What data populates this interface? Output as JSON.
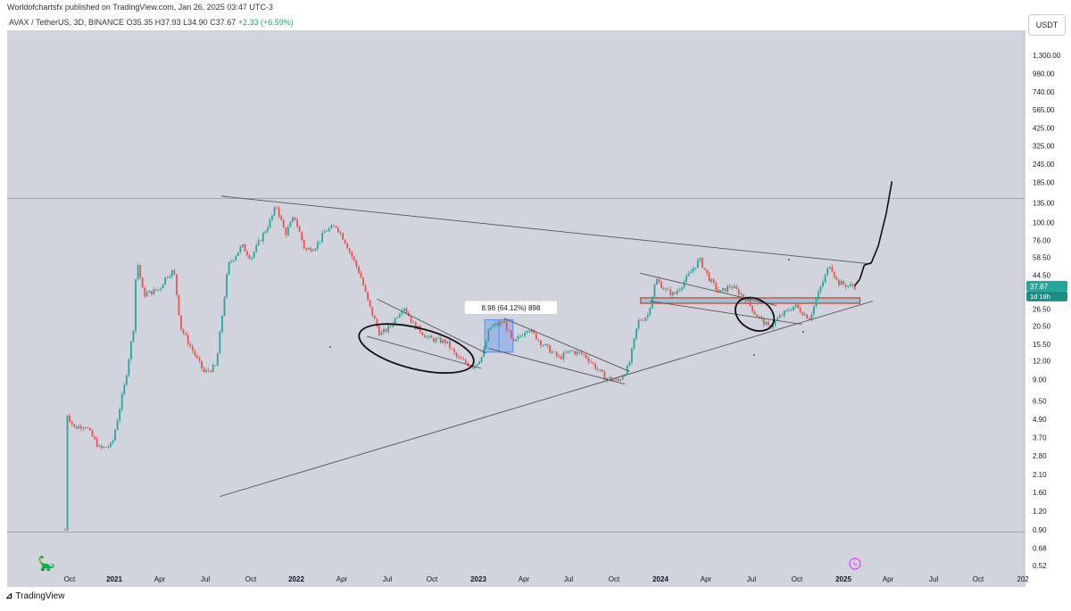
{
  "header": {
    "publisher_line": "Worldofchartsfx published on TradingView.com, Jan 26, 2025 03:47 UTC-3",
    "symbol_line": "AVAX / TetherUS, 3D, BINANCE",
    "ohlc": {
      "open": "O35.35",
      "high": "H37.93",
      "low": "L34.90",
      "close": "C37.67",
      "change": "+2.33 (+6.59%)"
    }
  },
  "currency_label": "USDT",
  "footer": {
    "brand": "TradingView"
  },
  "colors": {
    "background": "#d1d4dc",
    "up": "#26a69a",
    "down": "#ef5350",
    "line": "#555555",
    "badge": "#26a69a"
  },
  "chart_data": {
    "type": "candlestick",
    "scale": "log",
    "y_ticks": [
      "1,300.00",
      "980.00",
      "740.00",
      "565.00",
      "425.00",
      "325.00",
      "245.00",
      "185.00",
      "135.00",
      "100.00",
      "76.00",
      "58.50",
      "44.50",
      "34.50",
      "26.50",
      "20.50",
      "15.50",
      "12.00",
      "9.00",
      "6.50",
      "4.90",
      "3.70",
      "2.80",
      "2.10",
      "1.60",
      "1.20",
      "0.90",
      "0.68",
      "0.52"
    ],
    "x_ticks": [
      "Oct",
      "2021",
      "Apr",
      "Jul",
      "Oct",
      "2022",
      "Apr",
      "Jul",
      "Oct",
      "2023",
      "Apr",
      "Jul",
      "Oct",
      "2024",
      "Apr",
      "Jul",
      "Oct",
      "2025",
      "Apr",
      "Jul",
      "Oct",
      "202"
    ],
    "last_price_badge": {
      "value": "37.67",
      "countdown": "1d 18h"
    },
    "annotations": [
      {
        "text": "8.98 (64.12%) 898"
      }
    ],
    "price_path": [
      [
        "2020-09-22",
        0.9
      ],
      [
        "2020-09-24",
        5.5
      ],
      [
        "2020-10-10",
        4.3
      ],
      [
        "2020-11-01",
        4.5
      ],
      [
        "2020-12-01",
        3.1
      ],
      [
        "2020-12-25",
        3.3
      ],
      [
        "2021-01-20",
        8.5
      ],
      [
        "2021-02-08",
        22
      ],
      [
        "2021-02-12",
        60
      ],
      [
        "2021-02-26",
        33
      ],
      [
        "2021-03-30",
        36
      ],
      [
        "2021-04-13",
        44
      ],
      [
        "2021-04-28",
        48
      ],
      [
        "2021-05-12",
        20
      ],
      [
        "2021-06-10",
        13
      ],
      [
        "2021-06-28",
        10
      ],
      [
        "2021-07-22",
        11
      ],
      [
        "2021-08-15",
        52
      ],
      [
        "2021-09-12",
        70
      ],
      [
        "2021-09-30",
        58
      ],
      [
        "2021-10-14",
        72
      ],
      [
        "2021-11-06",
        100
      ],
      [
        "2021-11-20",
        130
      ],
      [
        "2021-12-08",
        84
      ],
      [
        "2021-12-26",
        110
      ],
      [
        "2022-01-17",
        65
      ],
      [
        "2022-02-08",
        70
      ],
      [
        "2022-02-26",
        88
      ],
      [
        "2022-03-20",
        95
      ],
      [
        "2022-04-07",
        75
      ],
      [
        "2022-05-07",
        45
      ],
      [
        "2022-05-25",
        28
      ],
      [
        "2022-06-16",
        18
      ],
      [
        "2022-07-05",
        20
      ],
      [
        "2022-08-02",
        28
      ],
      [
        "2022-08-22",
        21
      ],
      [
        "2022-09-20",
        17
      ],
      [
        "2022-10-27",
        16
      ],
      [
        "2022-11-18",
        12.5
      ],
      [
        "2022-12-20",
        11
      ],
      [
        "2023-01-08",
        13
      ],
      [
        "2023-01-22",
        20
      ],
      [
        "2023-02-20",
        22
      ],
      [
        "2023-03-10",
        15.5
      ],
      [
        "2023-04-08",
        20
      ],
      [
        "2023-05-04",
        16
      ],
      [
        "2023-06-10",
        12.5
      ],
      [
        "2023-07-04",
        14
      ],
      [
        "2023-08-02",
        13
      ],
      [
        "2023-09-10",
        9.3
      ],
      [
        "2023-10-07",
        8.8
      ],
      [
        "2023-10-28",
        11
      ],
      [
        "2023-11-16",
        22
      ],
      [
        "2023-12-05",
        24
      ],
      [
        "2023-12-22",
        42
      ],
      [
        "2024-01-08",
        36
      ],
      [
        "2024-01-27",
        33
      ],
      [
        "2024-02-20",
        42
      ],
      [
        "2024-03-18",
        57
      ],
      [
        "2024-04-07",
        42
      ],
      [
        "2024-04-27",
        34
      ],
      [
        "2024-05-20",
        38
      ],
      [
        "2024-06-20",
        31
      ],
      [
        "2024-07-07",
        25
      ],
      [
        "2024-08-04",
        20
      ],
      [
        "2024-08-29",
        24
      ],
      [
        "2024-09-25",
        28
      ],
      [
        "2024-10-25",
        23
      ],
      [
        "2024-11-15",
        36
      ],
      [
        "2024-12-05",
        53
      ],
      [
        "2024-12-20",
        40
      ],
      [
        "2025-01-10",
        38
      ],
      [
        "2025-01-24",
        37.67
      ]
    ],
    "projection": [
      [
        "2025-01-24",
        38
      ],
      [
        "2025-02-03",
        42
      ],
      [
        "2025-02-12",
        52
      ],
      [
        "2025-02-26",
        54
      ],
      [
        "2025-03-12",
        70
      ],
      [
        "2025-03-28",
        115
      ],
      [
        "2025-04-08",
        186
      ]
    ],
    "trendlines": [
      {
        "name": "descending-resistance",
        "from": [
          "2021-08-01",
          150
        ],
        "to": [
          "2025-02-26",
          53
        ]
      },
      {
        "name": "ascending-support",
        "from": [
          "2021-07-30",
          1.5
        ],
        "to": [
          "2025-03-01",
          30
        ]
      },
      {
        "name": "channel-2022-upper",
        "from": [
          "2022-06-10",
          31
        ],
        "to": [
          "2023-01-15",
          13.5
        ]
      },
      {
        "name": "channel-2022-lower",
        "from": [
          "2022-05-20",
          17.5
        ],
        "to": [
          "2023-01-05",
          10.7
        ]
      },
      {
        "name": "channel-2023-upper",
        "from": [
          "2023-02-20",
          23
        ],
        "to": [
          "2023-10-30",
          10.2
        ]
      },
      {
        "name": "channel-2023-lower",
        "from": [
          "2023-01-20",
          14.5
        ],
        "to": [
          "2023-10-20",
          8.4
        ]
      },
      {
        "name": "channel-2024-upper",
        "from": [
          "2023-11-20",
          46
        ],
        "to": [
          "2024-08-20",
          28
        ]
      },
      {
        "name": "channel-2024-lower",
        "from": [
          "2023-12-10",
          30
        ],
        "to": [
          "2024-10-10",
          21
        ]
      }
    ],
    "zones": [
      {
        "name": "support-zone",
        "from": [
          "2023-11-21",
          31.5
        ],
        "to": [
          "2025-02-03",
          29
        ]
      },
      {
        "name": "measure-box",
        "from": [
          "2023-01-12",
          22.5
        ],
        "to": [
          "2023-03-10",
          13.7
        ]
      }
    ],
    "horizontal_lines": [
      {
        "name": "high-level",
        "y": 145
      },
      {
        "name": "low-level",
        "y": 0.87
      }
    ],
    "ellipses": [
      {
        "name": "2022-bottom-circle",
        "center": [
          "2022-08-28",
          14.5
        ]
      },
      {
        "name": "2024-bottom-circle",
        "center": [
          "2024-07-07",
          24.5
        ]
      }
    ]
  }
}
